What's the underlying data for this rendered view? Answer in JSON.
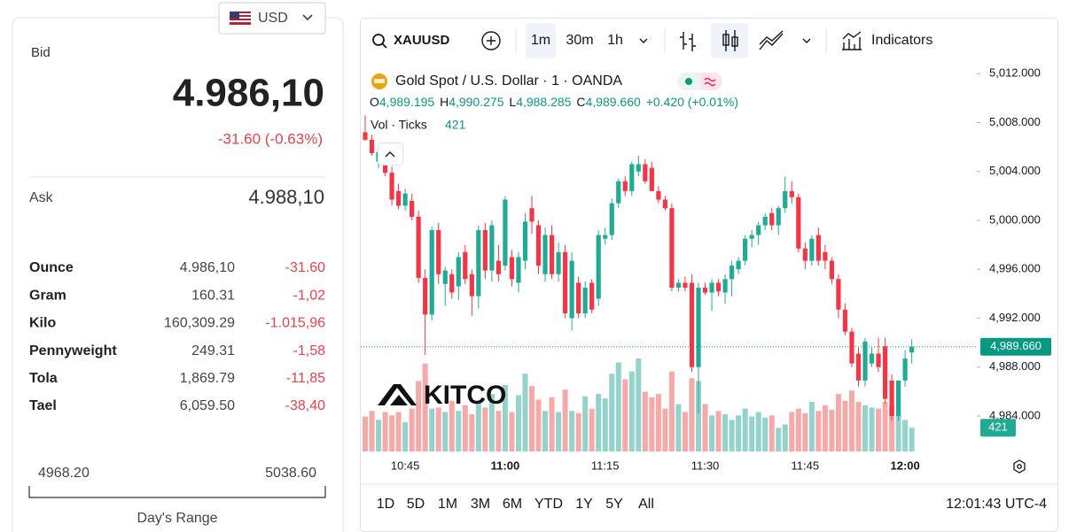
{
  "currency": "USD",
  "quote": {
    "bid_label": "Bid",
    "bid": "4.986,10",
    "change": "-31.60 (-0.63%)",
    "ask_label": "Ask",
    "ask": "4.988,10"
  },
  "table": {
    "rows": [
      [
        "Ounce",
        "4.986,10",
        "-31.60"
      ],
      [
        "Gram",
        "160.31",
        "-1,02"
      ],
      [
        "Kilo",
        "160,309.29",
        "-1.015,96"
      ],
      [
        "Pennyweight",
        "249.31",
        "-1,58"
      ],
      [
        "Tola",
        "1,869.79",
        "-11,85"
      ],
      [
        "Tael",
        "6,059.50",
        "-38,40"
      ]
    ]
  },
  "day_range": {
    "low": "4968.20",
    "high": "5038.60",
    "label": "Day's Range"
  },
  "toolbar": {
    "symbol": "XAUUSD",
    "intervals": [
      "1m",
      "30m",
      "1h"
    ],
    "indicators": "Indicators"
  },
  "legend": {
    "title": "Gold Spot / U.S. Dollar · 1 · OANDA",
    "ohlc_keys": [
      "O",
      "H",
      "L",
      "C"
    ],
    "ohlc_values": [
      "4,989.195",
      "4,990.275",
      "4,988.285",
      "4,989.660"
    ],
    "change": "+0.420 (+0.01%)",
    "volume_title": "Vol · Ticks"
  },
  "watermark": "KITCO",
  "ranges": [
    "1D",
    "5D",
    "1M",
    "3M",
    "6M",
    "YTD",
    "1Y",
    "5Y",
    "All"
  ],
  "clock": "12:01:43 UTC-4",
  "chart_data": {
    "type": "candlestick",
    "up_color": "#22ab94",
    "down_color": "#f23645",
    "volume_up_color": "#94d3cb",
    "volume_down_color": "#f5a9a9",
    "ylim": [
      4981.1,
      5012.6
    ],
    "yticks": [
      {
        "value": 4984,
        "label": "4,984.000"
      },
      {
        "value": 4988,
        "label": "4,988.000"
      },
      {
        "value": 4992,
        "label": "4,992.000"
      },
      {
        "value": 4996,
        "label": "4,996.000"
      },
      {
        "value": 5000,
        "label": "5,000.000"
      },
      {
        "value": 5004,
        "label": "5,004.000"
      },
      {
        "value": 5008,
        "label": "5,008.000"
      },
      {
        "value": 5012,
        "label": "5,012.000"
      }
    ],
    "last_price_label": "4,989.660",
    "categories": [
      null,
      null,
      null,
      null,
      null,
      null,
      "10:45",
      null,
      null,
      null,
      null,
      null,
      null,
      null,
      null,
      null,
      null,
      null,
      null,
      null,
      null,
      "11:00",
      null,
      null,
      null,
      null,
      null,
      null,
      null,
      null,
      null,
      null,
      null,
      null,
      null,
      null,
      "11:15",
      null,
      null,
      null,
      null,
      null,
      null,
      null,
      null,
      null,
      null,
      null,
      null,
      null,
      null,
      "11:30",
      null,
      null,
      null,
      null,
      null,
      null,
      null,
      null,
      null,
      null,
      null,
      null,
      null,
      null,
      "11:45",
      null,
      null,
      null,
      null,
      null,
      null,
      null,
      null,
      null,
      null,
      null,
      null,
      null,
      null,
      "12:00",
      null
    ],
    "ohlc": [
      [
        5007.2,
        5008.6,
        5006.5,
        5006.6
      ],
      [
        5006.6,
        5007.0,
        5005.3,
        5005.5
      ],
      [
        5004.8,
        5006.0,
        5004.3,
        5005.6
      ],
      [
        5004.8,
        5005.2,
        5003.6,
        5003.9
      ],
      [
        5003.9,
        5004.4,
        5001.2,
        5001.7
      ],
      [
        5002.4,
        5003.0,
        5000.9,
        5001.2
      ],
      [
        5001.2,
        5002.6,
        5000.8,
        5002.2
      ],
      [
        5001.6,
        5002.2,
        5000.0,
        5000.3
      ],
      [
        5000.3,
        5000.8,
        4994.9,
        4995.3
      ],
      [
        4995.3,
        4996.0,
        4989.0,
        4992.3
      ],
      [
        4992.3,
        4999.5,
        4991.8,
        4999.2
      ],
      [
        4999.2,
        4999.8,
        4994.8,
        4995.6
      ],
      [
        4994.8,
        4996.2,
        4993.0,
        4995.9
      ],
      [
        4995.6,
        4996.0,
        4993.6,
        4994.1
      ],
      [
        4994.6,
        4997.4,
        4993.5,
        4997.0
      ],
      [
        4997.4,
        4998.0,
        4994.8,
        4995.2
      ],
      [
        4995.6,
        4996.0,
        4992.2,
        4993.8
      ],
      [
        4993.8,
        4999.6,
        4992.8,
        4999.2
      ],
      [
        4999.2,
        4999.8,
        4995.2,
        4995.9
      ],
      [
        4995.9,
        5000.0,
        4995.0,
        4999.6
      ],
      [
        4996.7,
        4998.0,
        4995.0,
        4995.6
      ],
      [
        4996.3,
        5002.0,
        4995.9,
        5001.7
      ],
      [
        4997.0,
        4997.6,
        4994.6,
        4995.2
      ],
      [
        4994.9,
        4997.4,
        4994.1,
        4997.0
      ],
      [
        4996.7,
        5000.6,
        4996.0,
        4999.9
      ],
      [
        5001.0,
        5002.0,
        4998.9,
        4999.9
      ],
      [
        4999.6,
        5000.0,
        4995.6,
        4996.3
      ],
      [
        4995.6,
        4999.4,
        4995.0,
        4998.8
      ],
      [
        4998.8,
        4999.6,
        4995.2,
        4995.6
      ],
      [
        4995.6,
        4998.2,
        4995.0,
        4997.4
      ],
      [
        4997.4,
        4998.0,
        4992.0,
        4992.4
      ],
      [
        4992.0,
        4997.4,
        4991.0,
        4996.7
      ],
      [
        4994.9,
        4995.4,
        4992.0,
        4992.4
      ],
      [
        4992.4,
        4995.0,
        4992.0,
        4994.5
      ],
      [
        4994.9,
        4995.2,
        4992.4,
        4992.7
      ],
      [
        4993.6,
        4999.2,
        4993.0,
        4998.8
      ],
      [
        4998.5,
        4999.4,
        4998.0,
        4998.8
      ],
      [
        4998.8,
        5001.8,
        4998.4,
        5001.4
      ],
      [
        5001.4,
        5003.4,
        5001.0,
        5003.2
      ],
      [
        5003.2,
        5003.6,
        5002.0,
        5002.4
      ],
      [
        5002.4,
        5004.8,
        5002.0,
        5004.6
      ],
      [
        5004.0,
        5005.3,
        5003.6,
        5004.6
      ],
      [
        5004.6,
        5005.0,
        5003.0,
        5003.2
      ],
      [
        5004.3,
        5004.8,
        5002.4,
        5002.4
      ],
      [
        5002.4,
        5002.8,
        5001.4,
        5001.7
      ],
      [
        5001.7,
        5002.0,
        5000.8,
        5001.0
      ],
      [
        5001.0,
        5001.4,
        4994.2,
        4994.5
      ],
      [
        4994.5,
        4995.2,
        4994.2,
        4994.9
      ],
      [
        4994.9,
        4995.4,
        4994.2,
        4994.5
      ],
      [
        4994.9,
        4995.6,
        4987.6,
        4988.0
      ],
      [
        4988.0,
        4994.9,
        4984.2,
        4994.5
      ],
      [
        4994.5,
        4994.9,
        4993.9,
        4994.1
      ],
      [
        4994.1,
        4995.2,
        4992.6,
        4994.9
      ],
      [
        4994.9,
        4995.2,
        4993.8,
        4994.2
      ],
      [
        4994.1,
        4995.6,
        4993.2,
        4995.2
      ],
      [
        4995.2,
        4996.7,
        4993.8,
        4996.3
      ],
      [
        4996.0,
        4997.0,
        4995.6,
        4996.7
      ],
      [
        4996.7,
        4998.8,
        4996.3,
        4998.5
      ],
      [
        4998.5,
        4999.2,
        4997.8,
        4998.8
      ],
      [
        4998.8,
        4999.9,
        4998.0,
        4999.6
      ],
      [
        4999.6,
        5000.6,
        4999.2,
        5000.3
      ],
      [
        5000.6,
        5001.0,
        4999.2,
        4999.6
      ],
      [
        4999.6,
        5001.2,
        4998.8,
        5001.0
      ],
      [
        5001.0,
        5003.6,
        5000.6,
        5002.4
      ],
      [
        5002.4,
        5003.2,
        5001.4,
        5001.9
      ],
      [
        5001.9,
        5002.2,
        4997.4,
        4997.7
      ],
      [
        4997.7,
        4998.2,
        4996.0,
        4996.7
      ],
      [
        4996.7,
        4998.8,
        4996.3,
        4998.5
      ],
      [
        4998.8,
        4999.4,
        4996.3,
        4996.7
      ],
      [
        4997.4,
        4998.0,
        4996.0,
        4996.7
      ],
      [
        4996.7,
        4997.0,
        4994.8,
        4995.2
      ],
      [
        4995.2,
        4995.6,
        4992.0,
        4992.7
      ],
      [
        4992.7,
        4993.2,
        4990.6,
        4990.9
      ],
      [
        4990.9,
        4991.2,
        4988.0,
        4988.3
      ],
      [
        4989.1,
        4989.6,
        4986.4,
        4986.9
      ],
      [
        4986.9,
        4990.4,
        4986.4,
        4990.1
      ],
      [
        4988.3,
        4989.6,
        4988.0,
        4989.1
      ],
      [
        4989.1,
        4990.4,
        4987.6,
        4988.0
      ],
      [
        4989.7,
        4990.4,
        4985.0,
        4985.4
      ],
      [
        4986.9,
        4987.4,
        4983.6,
        4984.0
      ],
      [
        4984.0,
        4986.9,
        4983.6,
        4986.9
      ],
      [
        4986.9,
        4989.4,
        4986.4,
        4988.7
      ],
      [
        4989.195,
        4990.275,
        4988.285,
        4989.66
      ]
    ],
    "volume": [
      620,
      720,
      560,
      700,
      640,
      700,
      520,
      760,
      1250,
      1560,
      760,
      780,
      700,
      900,
      720,
      820,
      660,
      900,
      780,
      1020,
      720,
      1180,
      700,
      1000,
      1380,
      1160,
      920,
      720,
      960,
      700,
      1100,
      720,
      680,
      980,
      760,
      1020,
      940,
      1380,
      1580,
      1280,
      1420,
      1650,
      1060,
      960,
      1020,
      760,
      1420,
      840,
      700,
      1300,
      1250,
      840,
      640,
      720,
      660,
      560,
      640,
      760,
      620,
      700,
      600,
      640,
      420,
      480,
      700,
      760,
      680,
      880,
      720,
      820,
      740,
      1020,
      900,
      1080,
      880,
      820,
      780,
      760,
      880,
      820,
      660,
      560,
      421
    ]
  }
}
